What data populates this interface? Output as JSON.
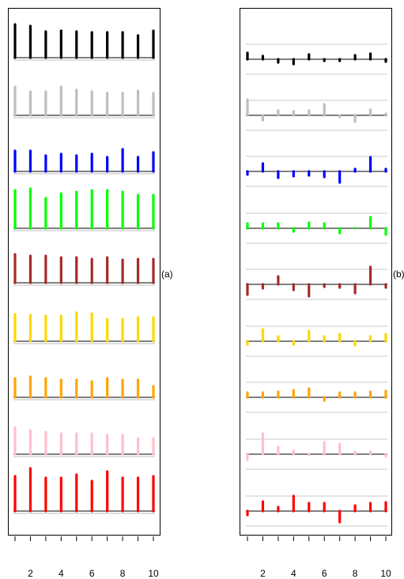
{
  "chart_data": [
    {
      "type": "bar",
      "panel_label": "(a)",
      "x": [
        1,
        2,
        3,
        4,
        5,
        6,
        7,
        8,
        9,
        10
      ],
      "xticks": [
        "2",
        "4",
        "6",
        "8",
        "10"
      ],
      "xlim": [
        1,
        10
      ],
      "series": [
        {
          "color": "#000000",
          "values": [
            42,
            40,
            33,
            34,
            33,
            32,
            32,
            32,
            28,
            34
          ]
        },
        {
          "color": "#bebebe",
          "values": [
            36,
            30,
            30,
            36,
            32,
            30,
            28,
            28,
            31,
            28
          ]
        },
        {
          "color": "#0000ff",
          "values": [
            26,
            26,
            20,
            22,
            20,
            22,
            18,
            28,
            18,
            24
          ]
        },
        {
          "color": "#00ff00",
          "values": [
            48,
            50,
            38,
            44,
            46,
            48,
            48,
            46,
            42,
            42
          ]
        },
        {
          "color": "#a52a2a",
          "values": [
            36,
            34,
            34,
            32,
            32,
            30,
            32,
            29,
            30,
            30
          ]
        },
        {
          "color": "#ffd700",
          "values": [
            34,
            33,
            32,
            32,
            36,
            35,
            28,
            28,
            30,
            30
          ]
        },
        {
          "color": "#ffa500",
          "values": [
            24,
            26,
            24,
            22,
            22,
            20,
            24,
            22,
            22,
            14
          ]
        },
        {
          "color": "#ffc0cb",
          "values": [
            34,
            30,
            28,
            26,
            26,
            26,
            24,
            24,
            20,
            20
          ]
        },
        {
          "color": "#ff0000",
          "values": [
            44,
            54,
            42,
            42,
            46,
            38,
            50,
            42,
            42,
            44
          ]
        }
      ]
    },
    {
      "type": "bar",
      "panel_label": "(b)",
      "x": [
        1,
        2,
        3,
        4,
        5,
        6,
        7,
        8,
        9,
        10
      ],
      "xticks": [
        "2",
        "4",
        "6",
        "8",
        "10"
      ],
      "xlim": [
        1,
        10
      ],
      "series": [
        {
          "color": "#000000",
          "values": [
            8,
            4,
            -4,
            -6,
            6,
            -2,
            -2,
            5,
            7,
            -3
          ]
        },
        {
          "color": "#bebebe",
          "values": [
            20,
            -6,
            6,
            5,
            6,
            14,
            -2,
            -8,
            7,
            2
          ]
        },
        {
          "color": "#0000ff",
          "values": [
            -4,
            10,
            -8,
            -6,
            -5,
            -7,
            -14,
            3,
            18,
            3
          ]
        },
        {
          "color": "#00ff00",
          "values": [
            6,
            6,
            6,
            -4,
            7,
            6,
            -6,
            0,
            14,
            -8
          ]
        },
        {
          "color": "#a52a2a",
          "values": [
            -13,
            -5,
            10,
            -7,
            -15,
            -3,
            -4,
            -11,
            22,
            -4
          ]
        },
        {
          "color": "#ffd700",
          "values": [
            -4,
            15,
            6,
            -4,
            13,
            6,
            9,
            -5,
            6,
            9
          ]
        },
        {
          "color": "#ffa500",
          "values": [
            6,
            6,
            7,
            9,
            11,
            -4,
            6,
            6,
            7,
            8
          ]
        },
        {
          "color": "#ffc0cb",
          "values": [
            -7,
            26,
            9,
            4,
            -1,
            15,
            13,
            3,
            3,
            -3
          ]
        },
        {
          "color": "#ff0000",
          "values": [
            -5,
            12,
            5,
            19,
            10,
            10,
            -14,
            7,
            10,
            11
          ]
        }
      ]
    }
  ]
}
